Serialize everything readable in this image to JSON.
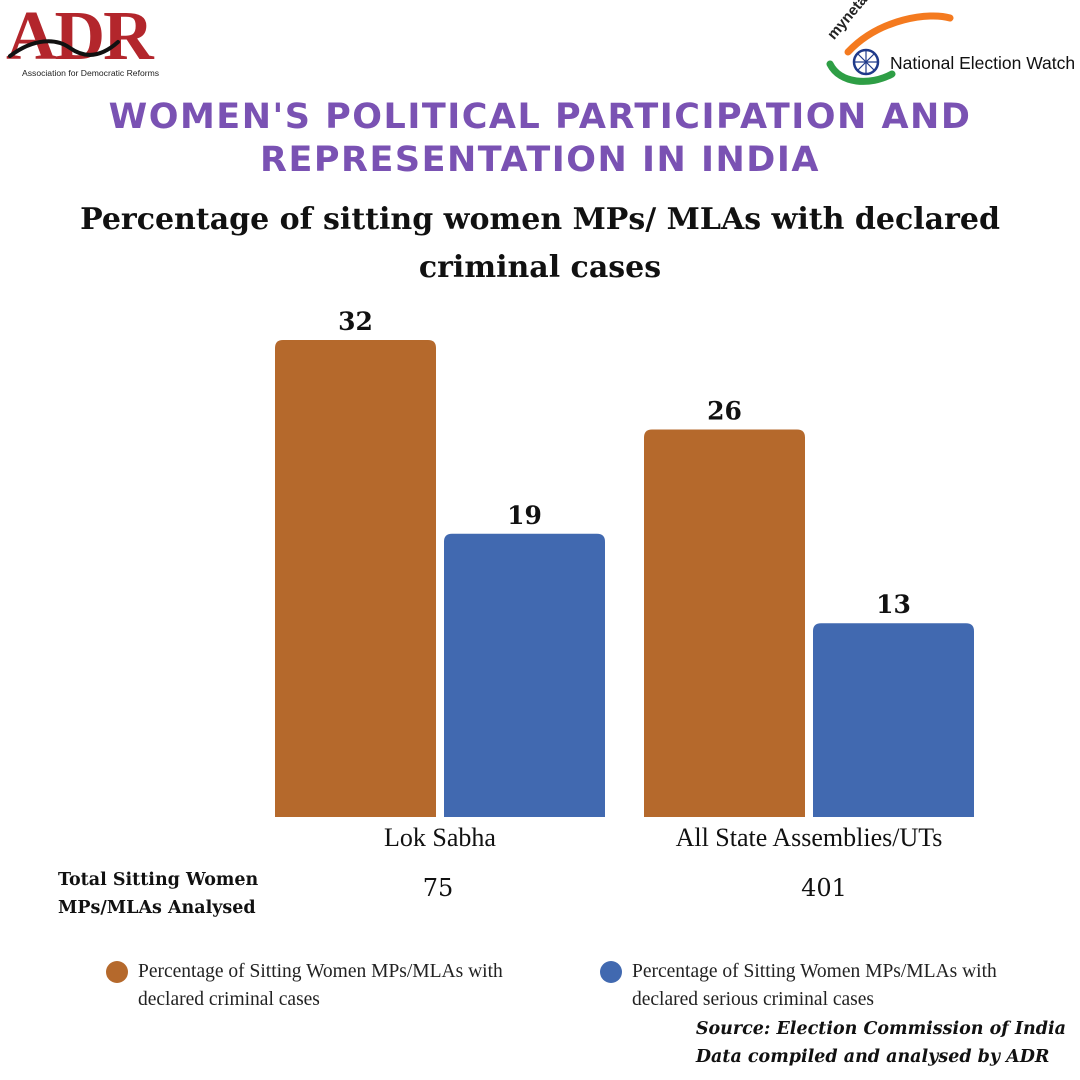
{
  "branding": {
    "left_logo": {
      "letters": "ADR",
      "tagline": "Association for Democratic Reforms"
    },
    "right_logo": {
      "site": "myneta.info",
      "name": "National Election Watch"
    },
    "colors": {
      "adr_red": "#b3262c",
      "saffron": "#f47a1f",
      "green": "#2e9e45",
      "navy": "#1f3a8a"
    }
  },
  "headline": {
    "line1": "WOMEN'S POLITICAL PARTICIPATION AND",
    "line2": "REPRESENTATION IN INDIA"
  },
  "chart_data": {
    "type": "bar",
    "title": "Percentage of sitting women MPs/ MLAs with declared criminal cases",
    "title_lines": [
      "Percentage of sitting women MPs/ MLAs with declared",
      "criminal cases"
    ],
    "categories": [
      "Lok Sabha",
      "All State Assemblies/UTs"
    ],
    "series": [
      {
        "name": "Percentage of Sitting Women MPs/MLAs with declared criminal cases",
        "values": [
          32,
          26
        ],
        "color": "#b5692c"
      },
      {
        "name": "Percentage of Sitting Women MPs/MLAs with declared serious criminal cases",
        "values": [
          19,
          13
        ],
        "color": "#4169b0"
      }
    ],
    "ylim": [
      0,
      32
    ],
    "xlabel": "",
    "ylabel": "",
    "grid": false,
    "legend_position": "bottom"
  },
  "totals": {
    "label_line1": "Total Sitting Women",
    "label_line2": "MPs/MLAs Analysed",
    "values": [
      "75",
      "401"
    ]
  },
  "source": {
    "line1": "Source: Election Commission of India",
    "line2": "Data compiled and analysed by ADR"
  }
}
